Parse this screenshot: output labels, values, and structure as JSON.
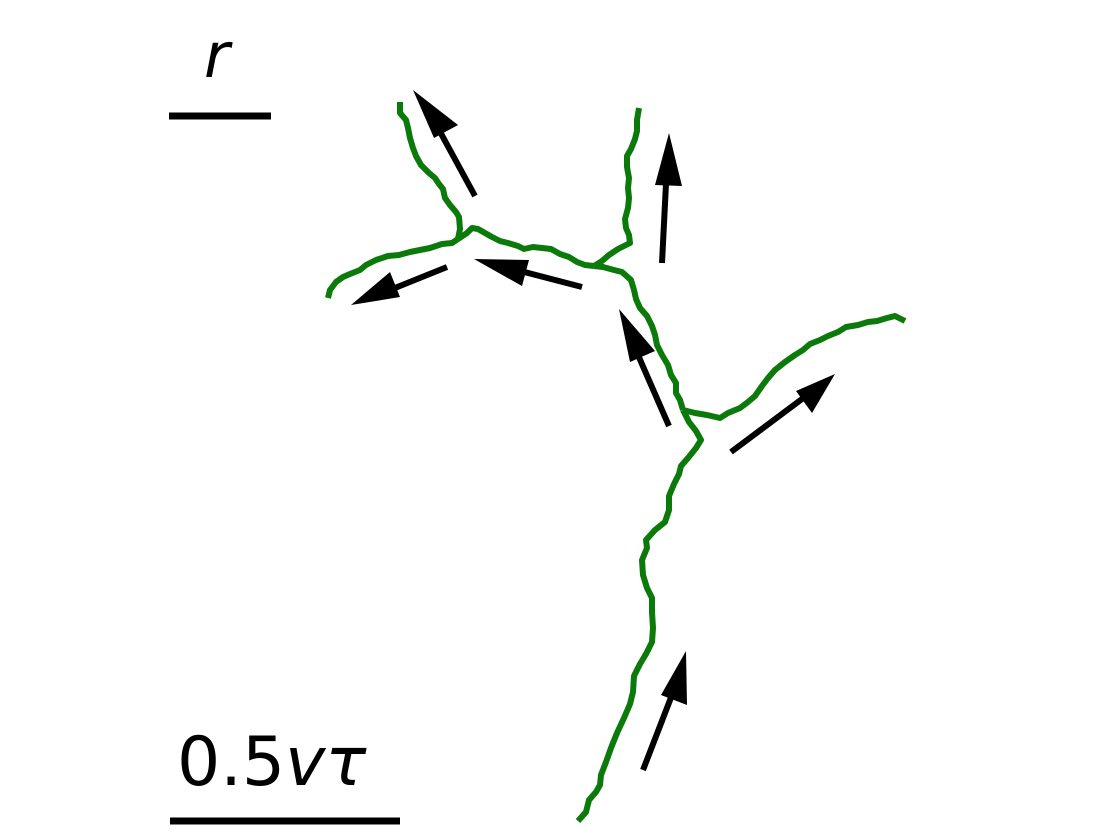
{
  "scale_bars": {
    "r": {
      "symbol": "r"
    },
    "distance": {
      "number": "0.5",
      "symbol": "vτ"
    }
  },
  "colors": {
    "path": "#0b7a0b",
    "arrow": "#000000",
    "scale_bar": "#000000",
    "background": "#ffffff"
  },
  "icons": {
    "arrow": "direction-arrow-icon"
  }
}
